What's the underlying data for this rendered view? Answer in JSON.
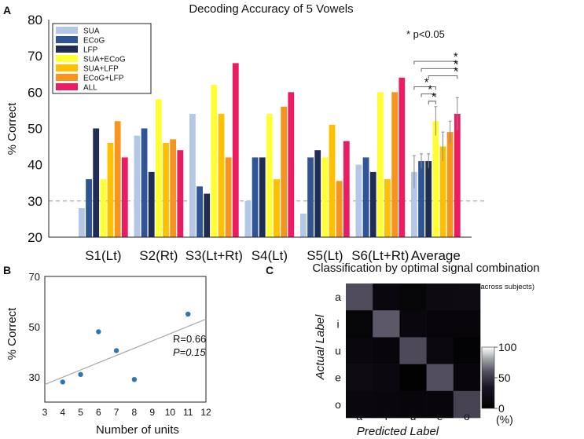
{
  "chart_data": [
    {
      "type": "bar",
      "panel_label": "A",
      "title": "Decoding Accuracy of 5 Vowels",
      "xlabel": "",
      "ylabel": "% Correct",
      "ylim": [
        20,
        80
      ],
      "yticks": [
        20,
        30,
        40,
        50,
        60,
        70,
        80
      ],
      "chance_level": 30,
      "categories": [
        "S1(Lt)",
        "S2(Rt)",
        "S3(Lt+Rt)",
        "S4(Lt)",
        "S5(Lt)",
        "S6(Lt+Rt)",
        "Average"
      ],
      "series": [
        {
          "name": "SUA",
          "color": "#b4c7e7",
          "values": [
            28,
            48,
            54,
            30,
            26.5,
            40,
            38
          ]
        },
        {
          "name": "ECoG",
          "color": "#2f5597",
          "values": [
            36,
            50,
            34,
            42,
            42,
            42,
            41
          ]
        },
        {
          "name": "LFP",
          "color": "#1f2d55",
          "values": [
            50,
            38,
            32,
            42,
            44,
            38,
            41
          ]
        },
        {
          "name": "SUA+ECoG",
          "color": "#ffff33",
          "values": [
            36,
            58,
            62,
            54,
            42,
            60,
            52
          ]
        },
        {
          "name": "SUA+LFP",
          "color": "#ffc000",
          "values": [
            46,
            46,
            54,
            36,
            51,
            36,
            45
          ]
        },
        {
          "name": "ECoG+LFP",
          "color": "#f7941d",
          "values": [
            52,
            47,
            42,
            56,
            35.5,
            60,
            49
          ]
        },
        {
          "name": "ALL",
          "color": "#ec1c63",
          "values": [
            42,
            44,
            68,
            60,
            46.5,
            64,
            54
          ]
        }
      ],
      "average_errors": [
        4.5,
        2,
        2,
        4,
        4,
        3,
        4.5
      ],
      "significance_note": "* p<0.05",
      "significance_marker": "*",
      "significance_brackets": [
        {
          "from_series": "SUA",
          "to_series": "ALL"
        },
        {
          "from_series": "ECoG",
          "to_series": "ALL"
        },
        {
          "from_series": "LFP",
          "to_series": "ALL"
        },
        {
          "from_series": "SUA",
          "to_series": "SUA+ECoG"
        },
        {
          "from_series": "ECoG",
          "to_series": "SUA+ECoG"
        },
        {
          "from_series": "LFP",
          "to_series": "SUA+ECoG"
        }
      ]
    },
    {
      "type": "scatter",
      "panel_label": "B",
      "xlabel": "Number of  units",
      "ylabel": "% Correct",
      "xlim": [
        3,
        12
      ],
      "ylim": [
        20,
        70
      ],
      "xticks": [
        3,
        4,
        5,
        6,
        7,
        8,
        9,
        10,
        11,
        12
      ],
      "yticks": [
        30,
        50,
        70
      ],
      "point_color": "#2e75b6",
      "points": [
        {
          "x": 4,
          "y": 28
        },
        {
          "x": 5,
          "y": 31
        },
        {
          "x": 6,
          "y": 48
        },
        {
          "x": 7,
          "y": 40.5
        },
        {
          "x": 8,
          "y": 29
        },
        {
          "x": 11,
          "y": 55
        }
      ],
      "fit_line": {
        "x": [
          3,
          12
        ],
        "y": [
          27,
          53
        ]
      },
      "annotation_r": "R=0.66",
      "annotation_p": "P=0.15"
    },
    {
      "type": "heatmap",
      "panel_label": "C",
      "title": "Classification by optimal signal combination",
      "subtitle": "(averaged across subjects)",
      "xlabel": "Predicted Label",
      "ylabel": "Actual Label",
      "x_labels": [
        "a",
        "i",
        "u",
        "e",
        "o"
      ],
      "y_labels": [
        "a",
        "i",
        "u",
        "e",
        "o"
      ],
      "values": [
        [
          58,
          14,
          8,
          17,
          19
        ],
        [
          8,
          62,
          14,
          9,
          11
        ],
        [
          14,
          11,
          57,
          15,
          4
        ],
        [
          19,
          15,
          3,
          59,
          11
        ],
        [
          14,
          12,
          11,
          9,
          54
        ]
      ],
      "colorbar_ticks": [
        0,
        50,
        100
      ],
      "colorbar_unit": "(%)",
      "value_range": [
        0,
        100
      ]
    }
  ]
}
